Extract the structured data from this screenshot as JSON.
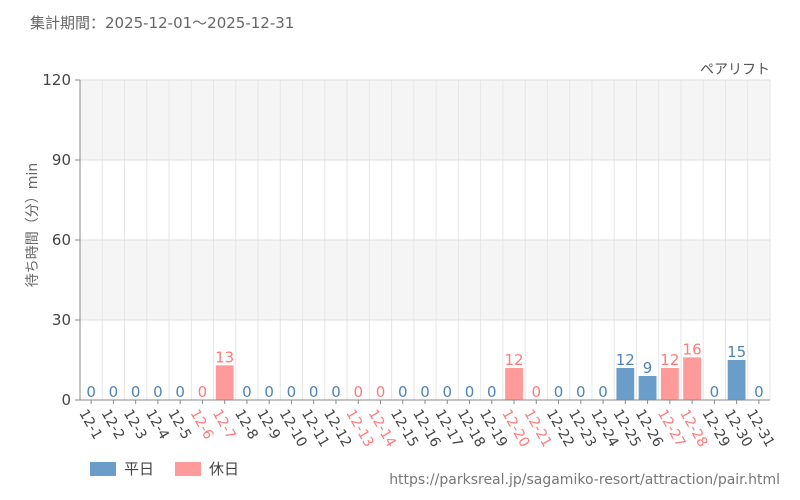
{
  "header": {
    "period": "集計期間：2025-12-01〜2025-12-31"
  },
  "colors": {
    "weekday": "#6a9ec8",
    "holiday": "#ff9a9a",
    "weekday_text": "#4f84b5",
    "holiday_text": "#ff7a7a"
  },
  "legend": {
    "weekday": "平日",
    "holiday": "休日"
  },
  "source_url": "https://parksreal.jp/sagamiko-resort/attraction/pair.html",
  "chart_data": {
    "type": "bar",
    "title": "ペアリフト",
    "ylabel": "待ち時間（分）min",
    "ylim": [
      0,
      120
    ],
    "yticks": [
      0,
      30,
      60,
      90,
      120
    ],
    "grid": true,
    "legend_position": "bottom-left",
    "categories": [
      "12-1",
      "12-2",
      "12-3",
      "12-4",
      "12-5",
      "12-6",
      "12-7",
      "12-8",
      "12-9",
      "12-10",
      "12-11",
      "12-12",
      "12-13",
      "12-14",
      "12-15",
      "12-16",
      "12-17",
      "12-18",
      "12-19",
      "12-20",
      "12-21",
      "12-22",
      "12-23",
      "12-24",
      "12-25",
      "12-26",
      "12-27",
      "12-28",
      "12-29",
      "12-30",
      "12-31"
    ],
    "values": [
      0,
      0,
      0,
      0,
      0,
      0,
      13,
      0,
      0,
      0,
      0,
      0,
      0,
      0,
      0,
      0,
      0,
      0,
      0,
      12,
      0,
      0,
      0,
      0,
      12,
      9,
      12,
      16,
      0,
      15,
      0
    ],
    "holiday": [
      false,
      false,
      false,
      false,
      false,
      true,
      true,
      false,
      false,
      false,
      false,
      false,
      true,
      true,
      false,
      false,
      false,
      false,
      false,
      true,
      true,
      false,
      false,
      false,
      false,
      false,
      true,
      true,
      false,
      false,
      false
    ]
  }
}
